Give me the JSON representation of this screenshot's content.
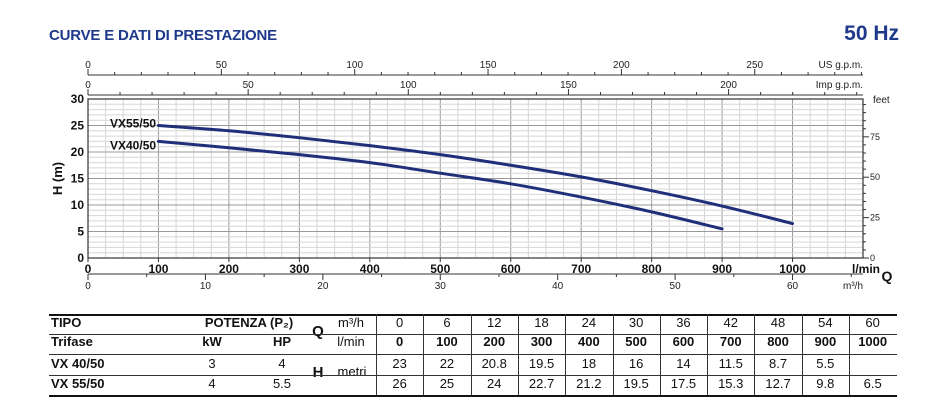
{
  "header": {
    "title": "CURVE E DATI DI PRESTAZIONE",
    "frequency": "50 Hz"
  },
  "chart_data": {
    "type": "line",
    "x_label": "l/min",
    "x_axis_symbol": "Q",
    "y_label": "H (m)",
    "x_range": [
      0,
      1100
    ],
    "y_range": [
      0,
      30
    ],
    "x_ticks": [
      0,
      100,
      200,
      300,
      400,
      500,
      600,
      700,
      800,
      900,
      1000
    ],
    "y_ticks": [
      0,
      5,
      10,
      15,
      20,
      25,
      30
    ],
    "grid": true,
    "secondary_axes": {
      "us_gpm": {
        "label": "US g.p.m.",
        "ticks": [
          0,
          50,
          100,
          150,
          200,
          250
        ]
      },
      "imp_gpm": {
        "label": "Imp g.p.m.",
        "ticks": [
          0,
          50,
          100,
          150,
          200
        ]
      },
      "feet": {
        "label": "feet",
        "ticks": [
          0,
          25,
          50,
          75
        ]
      },
      "m3h": {
        "label": "m³/h",
        "ticks": [
          0,
          10,
          20,
          30,
          40,
          50,
          60
        ]
      }
    },
    "series": [
      {
        "name": "VX55/50",
        "color": "#1f2f7a",
        "x": [
          100,
          200,
          300,
          400,
          500,
          600,
          700,
          800,
          900,
          1000
        ],
        "y": [
          25,
          24,
          22.7,
          21.2,
          19.5,
          17.5,
          15.3,
          12.7,
          9.8,
          6.5
        ]
      },
      {
        "name": "VX40/50",
        "color": "#1f2f7a",
        "x": [
          100,
          200,
          300,
          400,
          500,
          600,
          700,
          800,
          900
        ],
        "y": [
          22,
          20.8,
          19.5,
          18,
          16,
          14,
          11.5,
          8.7,
          5.5
        ]
      }
    ]
  },
  "table": {
    "tipo": "TIPO",
    "trifase": "Trifase",
    "potenza": "POTENZA (P₂)",
    "kw": "kW",
    "hp": "HP",
    "q": "Q",
    "m3h_label": "m³/h",
    "lmin_label": "l/min",
    "h": "H",
    "metri": "metri",
    "m3h_values": [
      "0",
      "6",
      "12",
      "18",
      "24",
      "30",
      "36",
      "42",
      "48",
      "54",
      "60"
    ],
    "lmin_values": [
      "0",
      "100",
      "200",
      "300",
      "400",
      "500",
      "600",
      "700",
      "800",
      "900",
      "1000"
    ],
    "rows": [
      {
        "model": "VX 40/50",
        "kw": "3",
        "hp": "4",
        "h": [
          "23",
          "22",
          "20.8",
          "19.5",
          "18",
          "16",
          "14",
          "11.5",
          "8.7",
          "5.5",
          ""
        ]
      },
      {
        "model": "VX 55/50",
        "kw": "4",
        "hp": "5.5",
        "h": [
          "26",
          "25",
          "24",
          "22.7",
          "21.2",
          "19.5",
          "17.5",
          "15.3",
          "12.7",
          "9.8",
          "6.5"
        ]
      }
    ]
  }
}
